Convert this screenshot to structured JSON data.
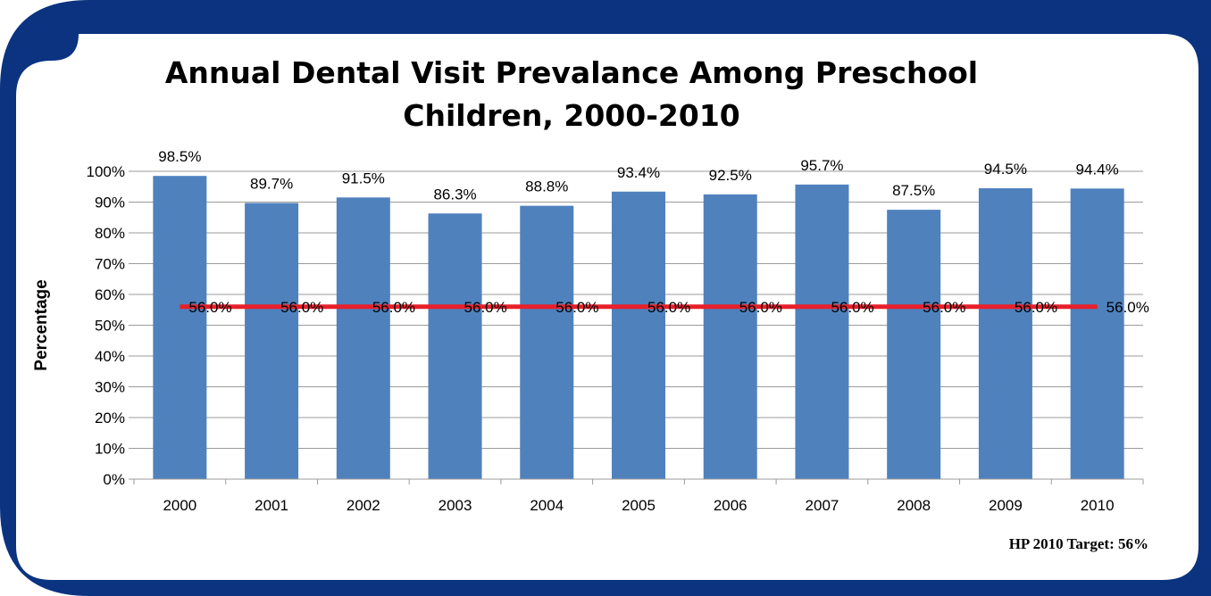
{
  "chart_data": {
    "type": "bar",
    "title_line1": "Annual Dental Visit Prevalance Among Preschool",
    "title_line2": "Children, 2000-2010",
    "ylabel": "Percentage",
    "xlabel": "",
    "ylim": [
      0,
      100
    ],
    "y_ticks": [
      "0%",
      "10%",
      "20%",
      "30%",
      "40%",
      "50%",
      "60%",
      "70%",
      "80%",
      "90%",
      "100%"
    ],
    "grid": true,
    "categories": [
      "2000",
      "2001",
      "2002",
      "2003",
      "2004",
      "2005",
      "2006",
      "2007",
      "2008",
      "2009",
      "2010"
    ],
    "series": [
      {
        "values": [
          98.5,
          89.7,
          91.5,
          86.3,
          88.8,
          93.4,
          92.5,
          95.7,
          87.5,
          94.5,
          94.4
        ],
        "labels": [
          "98.5%",
          "89.7%",
          "91.5%",
          "86.3%",
          "88.8%",
          "93.4%",
          "92.5%",
          "95.7%",
          "87.5%",
          "94.5%",
          "94.4%"
        ],
        "color": "#4f81bd",
        "kind": "bar"
      },
      {
        "values": [
          56.0,
          56.0,
          56.0,
          56.0,
          56.0,
          56.0,
          56.0,
          56.0,
          56.0,
          56.0,
          56.0
        ],
        "labels": [
          "56.0%",
          "56.0%",
          "56.0%",
          "56.0%",
          "56.0%",
          "56.0%",
          "56.0%",
          "56.0%",
          "56.0%",
          "56.0%",
          "56.0%"
        ],
        "color": "#e8202a",
        "kind": "line"
      }
    ]
  },
  "footnote": "HP 2010 Target: 56%",
  "colors": {
    "frame": "#0b3380",
    "panel": "#ffffff",
    "grid": "#9b9b9b",
    "bar": "#4f81bd",
    "target_line": "#e8202a"
  }
}
